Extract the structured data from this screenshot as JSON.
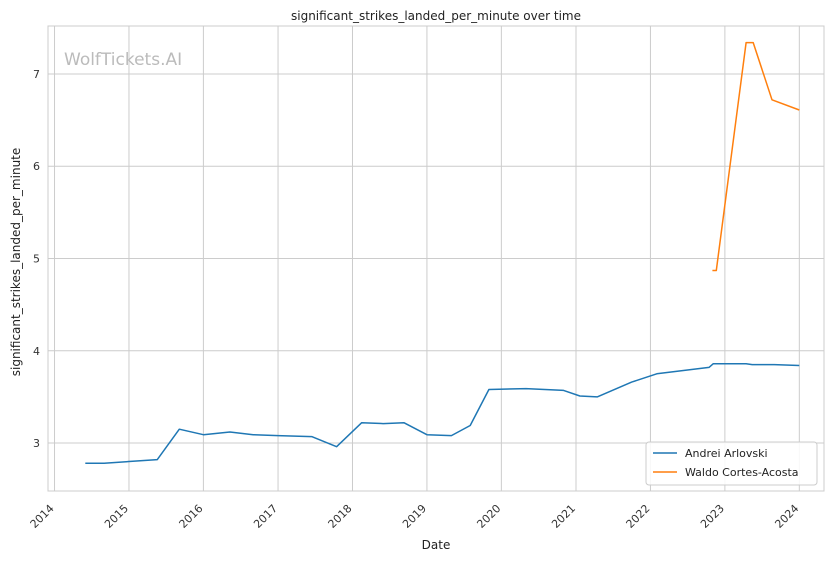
{
  "watermark": "WolfTickets.AI",
  "chart_data": {
    "type": "line",
    "title": "significant_strikes_landed_per_minute over time",
    "xlabel": "Date",
    "ylabel": "significant_strikes_landed_per_minute",
    "x_type": "date",
    "xlim": [
      "2013-11-30",
      "2024-05-01"
    ],
    "ylim": [
      2.48,
      7.52
    ],
    "x_ticks": [
      "2014",
      "2015",
      "2016",
      "2017",
      "2018",
      "2019",
      "2020",
      "2021",
      "2022",
      "2023",
      "2024"
    ],
    "y_ticks": [
      3,
      4,
      5,
      6,
      7
    ],
    "grid": true,
    "legend_position": "lower-right",
    "series": [
      {
        "name": "Andrei Arlovski",
        "color": "#1f77b4",
        "points": [
          {
            "x": "2014-06-01",
            "y": 2.78
          },
          {
            "x": "2014-09-01",
            "y": 2.78
          },
          {
            "x": "2015-01-01",
            "y": 2.8
          },
          {
            "x": "2015-05-20",
            "y": 2.82
          },
          {
            "x": "2015-09-05",
            "y": 3.15
          },
          {
            "x": "2016-01-01",
            "y": 3.09
          },
          {
            "x": "2016-05-10",
            "y": 3.12
          },
          {
            "x": "2016-09-01",
            "y": 3.09
          },
          {
            "x": "2017-01-01",
            "y": 3.08
          },
          {
            "x": "2017-06-15",
            "y": 3.07
          },
          {
            "x": "2017-10-15",
            "y": 2.96
          },
          {
            "x": "2018-02-15",
            "y": 3.22
          },
          {
            "x": "2018-06-01",
            "y": 3.21
          },
          {
            "x": "2018-09-10",
            "y": 3.22
          },
          {
            "x": "2019-01-01",
            "y": 3.09
          },
          {
            "x": "2019-05-01",
            "y": 3.08
          },
          {
            "x": "2019-08-01",
            "y": 3.19
          },
          {
            "x": "2019-11-01",
            "y": 3.58
          },
          {
            "x": "2020-05-01",
            "y": 3.59
          },
          {
            "x": "2020-11-01",
            "y": 3.57
          },
          {
            "x": "2021-01-20",
            "y": 3.51
          },
          {
            "x": "2021-04-15",
            "y": 3.5
          },
          {
            "x": "2021-10-01",
            "y": 3.66
          },
          {
            "x": "2022-02-01",
            "y": 3.75
          },
          {
            "x": "2022-10-15",
            "y": 3.82
          },
          {
            "x": "2022-11-05",
            "y": 3.86
          },
          {
            "x": "2023-04-15",
            "y": 3.86
          },
          {
            "x": "2023-05-15",
            "y": 3.85
          },
          {
            "x": "2023-09-01",
            "y": 3.85
          },
          {
            "x": "2024-01-01",
            "y": 3.84
          }
        ]
      },
      {
        "name": "Waldo Cortes-Acosta",
        "color": "#ff7f0e",
        "points": [
          {
            "x": "2022-11-01",
            "y": 4.87
          },
          {
            "x": "2022-11-20",
            "y": 4.87
          },
          {
            "x": "2023-04-15",
            "y": 7.34
          },
          {
            "x": "2023-05-20",
            "y": 7.34
          },
          {
            "x": "2023-08-20",
            "y": 6.72
          },
          {
            "x": "2024-01-01",
            "y": 6.61
          }
        ]
      }
    ]
  }
}
